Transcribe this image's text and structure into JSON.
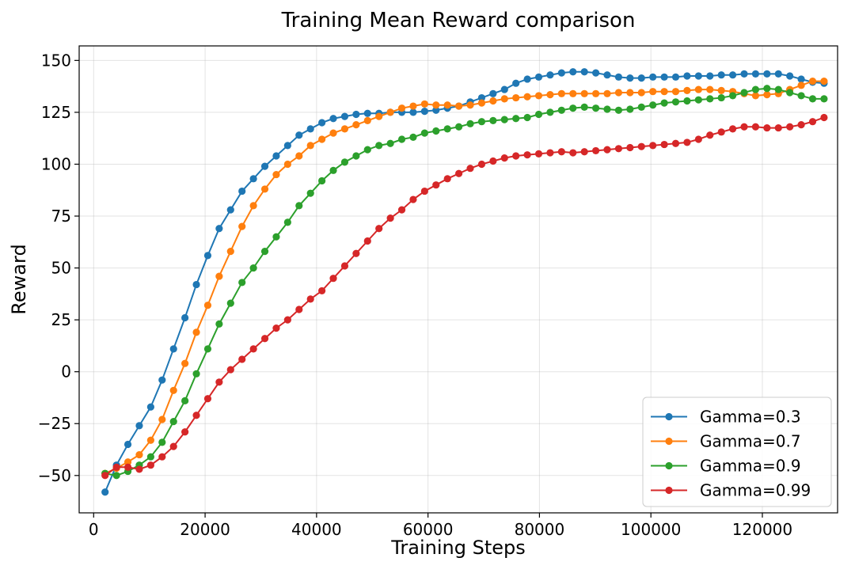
{
  "chart_data": {
    "type": "line",
    "title": "Training Mean Reward comparison",
    "xlabel": "Training Steps",
    "ylabel": "Reward",
    "xlim": [
      -2600,
      133500
    ],
    "ylim": [
      -68,
      157
    ],
    "xticks": [
      0,
      20000,
      40000,
      60000,
      80000,
      100000,
      120000
    ],
    "xtick_labels": [
      "0",
      "20000",
      "40000",
      "60000",
      "80000",
      "100000",
      "120000"
    ],
    "yticks": [
      -50,
      -25,
      0,
      25,
      50,
      75,
      100,
      125,
      150
    ],
    "ytick_labels": [
      "−50",
      "−25",
      "0",
      "25",
      "50",
      "75",
      "100",
      "125",
      "150"
    ],
    "grid": true,
    "legend_position": "lower-right",
    "x": [
      2048,
      4096,
      6144,
      8192,
      10240,
      12288,
      14336,
      16384,
      18432,
      20480,
      22528,
      24576,
      26624,
      28672,
      30720,
      32768,
      34816,
      36864,
      38912,
      40960,
      43008,
      45056,
      47104,
      49152,
      51200,
      53248,
      55296,
      57344,
      59392,
      61440,
      63488,
      65536,
      67584,
      69632,
      71680,
      73728,
      75776,
      77824,
      79872,
      81920,
      83968,
      86016,
      88064,
      90112,
      92160,
      94208,
      96256,
      98304,
      100352,
      102400,
      104448,
      106496,
      108544,
      110592,
      112640,
      114688,
      116736,
      118784,
      120832,
      122880,
      124928,
      126976,
      129024,
      131072
    ],
    "series": [
      {
        "name": "Gamma=0.3",
        "color": "#1f77b4",
        "values": [
          -58,
          -45,
          -35,
          -26,
          -17,
          -4,
          11,
          26,
          42,
          56,
          69,
          78,
          87,
          93,
          99,
          104,
          109,
          114,
          117,
          120,
          122,
          123,
          124,
          124.5,
          124.5,
          125,
          125,
          125,
          125.5,
          126,
          127,
          128,
          130,
          132,
          134,
          136,
          139,
          141,
          142,
          143,
          144,
          144.5,
          144.5,
          144,
          143,
          142,
          141.5,
          141.5,
          142,
          142,
          142,
          142.5,
          142.5,
          142.5,
          143,
          143,
          143.5,
          143.5,
          143.5,
          143.5,
          142.5,
          141,
          139.5,
          139
        ]
      },
      {
        "name": "Gamma=0.7",
        "color": "#ff7f0e",
        "values": [
          -49,
          -46.5,
          -43.5,
          -40,
          -33,
          -23,
          -9,
          4,
          19,
          32,
          46,
          58,
          70,
          80,
          88,
          95,
          100,
          104,
          109,
          112,
          115,
          117,
          119,
          121,
          123,
          125,
          127,
          128,
          129,
          128.5,
          128.5,
          128,
          128.5,
          129.5,
          130.5,
          131.5,
          132,
          132.5,
          133,
          133.5,
          134,
          134,
          134,
          134,
          134,
          134.5,
          134.5,
          134.5,
          135,
          135,
          135,
          135.5,
          136,
          136,
          135.5,
          135,
          134,
          133,
          133.5,
          134,
          136,
          138,
          140,
          140
        ]
      },
      {
        "name": "Gamma=0.9",
        "color": "#2ca02c",
        "values": [
          -49,
          -50,
          -48,
          -45,
          -41,
          -34,
          -24,
          -14,
          -1,
          11,
          23,
          33,
          43,
          50,
          58,
          65,
          72,
          80,
          86,
          92,
          97,
          101,
          104,
          107,
          109,
          110,
          112,
          113,
          115,
          116,
          117,
          118,
          119.5,
          120.5,
          121,
          121.5,
          122,
          122.5,
          124,
          125,
          126,
          127,
          127.5,
          127,
          126.5,
          126,
          126.5,
          127.5,
          128.5,
          129.5,
          130,
          130.5,
          131,
          131.5,
          132,
          133,
          134.5,
          136,
          136.5,
          136,
          134.5,
          133,
          131.5,
          131.5
        ]
      },
      {
        "name": "Gamma=0.99",
        "color": "#d62728",
        "values": [
          -50,
          -46,
          -46,
          -47,
          -45,
          -41,
          -36,
          -29,
          -21,
          -13,
          -5,
          1,
          6,
          11,
          16,
          21,
          25,
          30,
          35,
          39,
          45,
          51,
          57,
          63,
          69,
          74,
          78,
          83,
          87,
          90,
          93,
          95.5,
          98,
          100,
          101.5,
          103,
          104,
          104.5,
          105,
          105.5,
          106,
          105.5,
          106,
          106.5,
          107,
          107.5,
          108,
          108.5,
          109,
          109.5,
          110,
          110.5,
          112,
          114,
          115.5,
          117,
          118,
          118,
          117.5,
          117.5,
          118,
          119,
          120.5,
          122.5
        ]
      }
    ]
  }
}
